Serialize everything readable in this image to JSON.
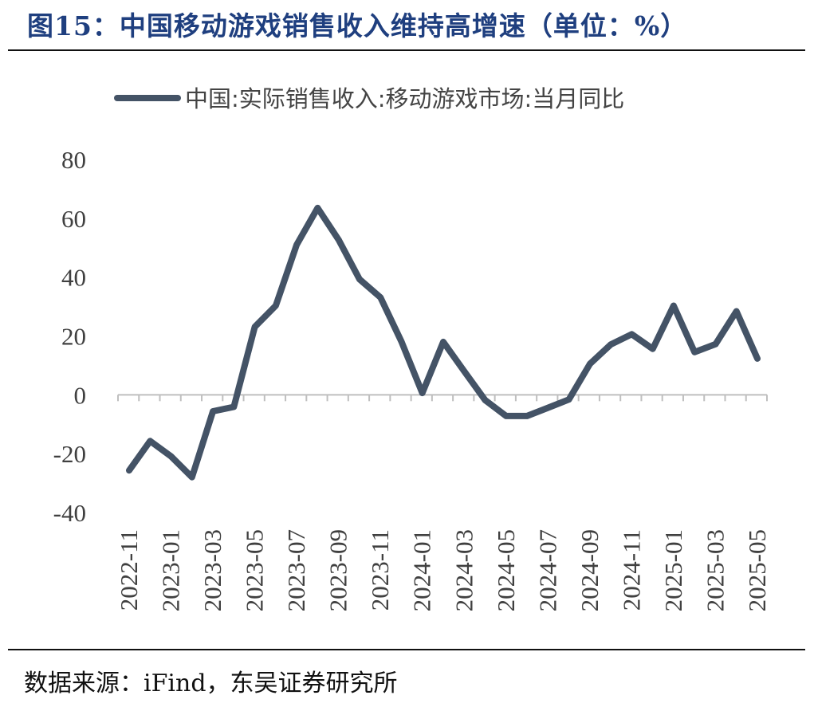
{
  "title": "图15：中国移动游戏销售收入维持高增速（单位：%）",
  "source": "数据来源：iFind，东吴证券研究所",
  "colors": {
    "series": "#445366",
    "title": "#1f3f7f",
    "axis": "#bfbfbf"
  },
  "chart_data": {
    "type": "line",
    "title": "图15：中国移动游戏销售收入维持高增速（单位：%）",
    "xlabel": "",
    "ylabel": "",
    "ylim": [
      -40,
      80
    ],
    "yticks": [
      "80",
      "60",
      "40",
      "20",
      "0",
      "-20",
      "-40"
    ],
    "ytick_values": [
      80,
      60,
      40,
      20,
      0,
      -20,
      -40
    ],
    "grid": false,
    "legend": "top",
    "x": [
      "2022-11",
      "2022-12",
      "2023-01",
      "2023-02",
      "2023-03",
      "2023-04",
      "2023-05",
      "2023-06",
      "2023-07",
      "2023-08",
      "2023-09",
      "2023-10",
      "2023-11",
      "2023-12",
      "2024-01",
      "2024-02",
      "2024-03",
      "2024-04",
      "2024-05",
      "2024-06",
      "2024-07",
      "2024-08",
      "2024-09",
      "2024-10",
      "2024-11",
      "2024-12",
      "2025-01",
      "2025-02",
      "2025-03",
      "2025-04",
      "2025-05"
    ],
    "xtick_labels": [
      "2022-11",
      "2023-01",
      "2023-03",
      "2023-05",
      "2023-07",
      "2023-09",
      "2023-11",
      "2024-01",
      "2024-03",
      "2024-05",
      "2024-07",
      "2024-09",
      "2024-11",
      "2025-01",
      "2025-03",
      "2025-05"
    ],
    "series": [
      {
        "name": "中国:实际销售收入:移动游戏市场:当月同比",
        "values": [
          -25.7,
          -15.7,
          -20.9,
          -28.0,
          -5.6,
          -4.1,
          23.1,
          30.3,
          51.0,
          63.5,
          52.7,
          39.3,
          33.1,
          18.1,
          0.6,
          18.0,
          8.0,
          -1.8,
          -7.2,
          -7.2,
          -4.4,
          -1.6,
          10.5,
          17.1,
          20.6,
          15.6,
          30.3,
          14.5,
          17.2,
          28.4,
          12.3
        ]
      }
    ]
  }
}
